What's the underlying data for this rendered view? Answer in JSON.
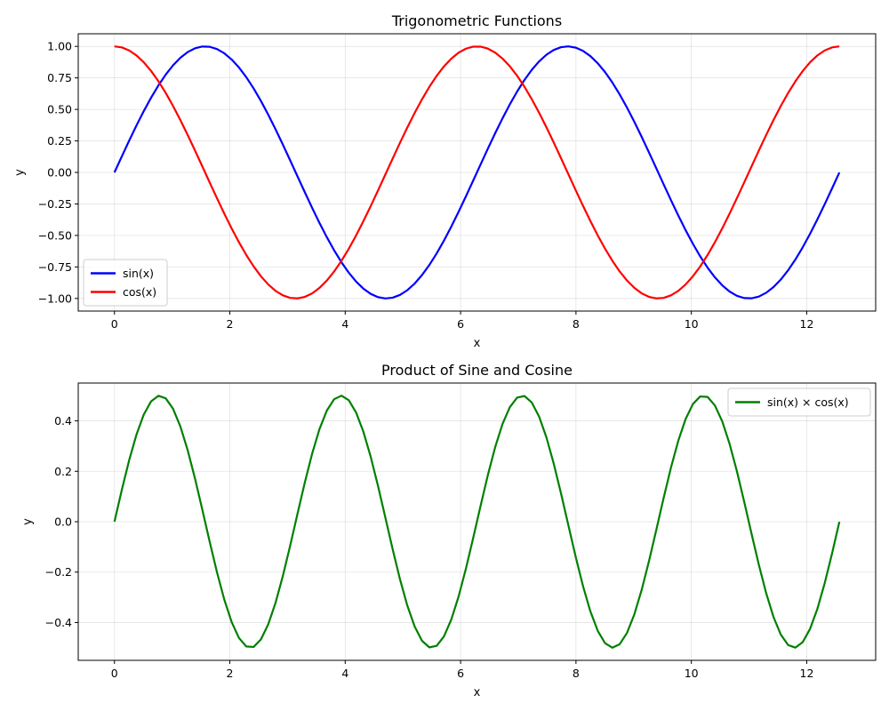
{
  "chart_data": [
    {
      "type": "line",
      "title": "Trigonometric Functions",
      "xlabel": "x",
      "ylabel": "y",
      "xlim": [
        -0.628,
        13.195
      ],
      "ylim": [
        -1.1,
        1.1
      ],
      "xticks": [
        0,
        2,
        4,
        6,
        8,
        10,
        12
      ],
      "xtick_labels": [
        "0",
        "2",
        "4",
        "6",
        "8",
        "10",
        "12"
      ],
      "yticks": [
        -1.0,
        -0.75,
        -0.5,
        -0.25,
        0.0,
        0.25,
        0.5,
        0.75,
        1.0
      ],
      "ytick_labels": [
        "−1.00",
        "−0.75",
        "−0.50",
        "−0.25",
        "0.00",
        "0.25",
        "0.50",
        "0.75",
        "1.00"
      ],
      "grid": true,
      "legend_position": "lower-left",
      "x_range": [
        0,
        12.566
      ],
      "series": [
        {
          "name": "sin(x)",
          "color": "#0000ff",
          "function": "sin(x)"
        },
        {
          "name": "cos(x)",
          "color": "#ff0000",
          "function": "cos(x)"
        }
      ]
    },
    {
      "type": "line",
      "title": "Product of Sine and Cosine",
      "xlabel": "x",
      "ylabel": "y",
      "xlim": [
        -0.628,
        13.195
      ],
      "ylim": [
        -0.55,
        0.55
      ],
      "xticks": [
        0,
        2,
        4,
        6,
        8,
        10,
        12
      ],
      "xtick_labels": [
        "0",
        "2",
        "4",
        "6",
        "8",
        "10",
        "12"
      ],
      "yticks": [
        -0.4,
        -0.2,
        0.0,
        0.2,
        0.4
      ],
      "ytick_labels": [
        "−0.4",
        "−0.2",
        "0.0",
        "0.2",
        "0.4"
      ],
      "grid": true,
      "legend_position": "upper-right",
      "x_range": [
        0,
        12.566
      ],
      "series": [
        {
          "name": "sin(x) × cos(x)",
          "color": "#008000",
          "function": "sin(x)*cos(x)"
        }
      ]
    }
  ]
}
